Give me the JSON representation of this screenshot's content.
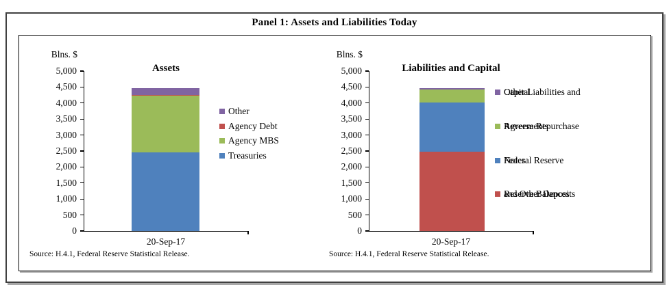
{
  "panel": {
    "title": "Panel 1: Assets and Liabilities Today"
  },
  "chart_data": [
    {
      "type": "bar",
      "stacked": true,
      "title": "Assets",
      "ylabel": "Blns. $",
      "categories": [
        "20-Sep-17"
      ],
      "ylim": [
        0,
        5000
      ],
      "ytick_step": 500,
      "grid": false,
      "legend_position": "right",
      "series": [
        {
          "name": "Treasuries",
          "values": [
            2465
          ],
          "color": "#4f81bd"
        },
        {
          "name": "Agency MBS",
          "values": [
            1775
          ],
          "color": "#9bbb59"
        },
        {
          "name": "Agency Debt",
          "values": [
            10
          ],
          "color": "#c0504d"
        },
        {
          "name": "Other",
          "values": [
            210
          ],
          "color": "#8064a2"
        }
      ],
      "legend": [
        {
          "name": "Other",
          "lines": [
            "Other"
          ],
          "color": "#8064a2"
        },
        {
          "name": "Agency Debt",
          "lines": [
            "Agency Debt"
          ],
          "color": "#c0504d"
        },
        {
          "name": "Agency MBS",
          "lines": [
            "Agency MBS"
          ],
          "color": "#9bbb59"
        },
        {
          "name": "Treasuries",
          "lines": [
            "Treasuries"
          ],
          "color": "#4f81bd"
        }
      ],
      "source": "Source: H.4.1, Federal Reserve Statistical Release."
    },
    {
      "type": "bar",
      "stacked": true,
      "title": "Liabilities and Capital",
      "ylabel": "Blns. $",
      "categories": [
        "20-Sep-17"
      ],
      "ylim": [
        0,
        5000
      ],
      "ytick_step": 500,
      "grid": false,
      "legend_position": "right",
      "series": [
        {
          "name": "Reserve Balances and Other Deposits",
          "values": [
            2480
          ],
          "color": "#c0504d"
        },
        {
          "name": "Federal Reserve Notes",
          "values": [
            1530
          ],
          "color": "#4f81bd"
        },
        {
          "name": "Reverse Repurchase Agreements",
          "values": [
            405
          ],
          "color": "#9bbb59"
        },
        {
          "name": "Other Liabilities and Capital",
          "values": [
            45
          ],
          "color": "#8064a2"
        }
      ],
      "legend": [
        {
          "name": "Other Liabilities and Capital",
          "lines": [
            "Other Liabilities and",
            "Capital"
          ],
          "color": "#8064a2"
        },
        {
          "name": "Reverse Repurchase Agreements",
          "lines": [
            "Reverse Repurchase",
            "Agreements"
          ],
          "color": "#9bbb59"
        },
        {
          "name": "Federal Reserve Notes",
          "lines": [
            "Federal Reserve",
            "Notes"
          ],
          "color": "#4f81bd"
        },
        {
          "name": "Reserve Balances and Other Deposits",
          "lines": [
            "Reserve Balances",
            "and Other Deposits"
          ],
          "color": "#c0504d"
        }
      ],
      "source": "Source: H.4.1, Federal Reserve Statistical Release."
    }
  ]
}
